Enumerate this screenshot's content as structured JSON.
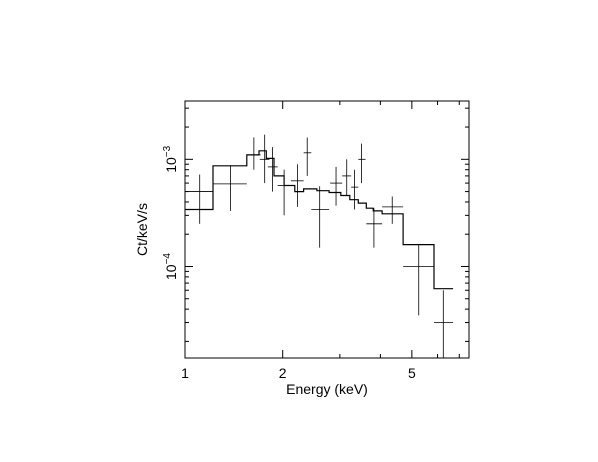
{
  "chart_data": {
    "type": "line",
    "xlabel": "Energy (keV)",
    "ylabel": "Ct/keV/s",
    "x_scale": "log",
    "y_scale": "log",
    "xlim": [
      1.0,
      7.5
    ],
    "ylim": [
      1.4e-05,
      0.0035
    ],
    "x_ticks": [
      {
        "value": 1,
        "label": "1"
      },
      {
        "value": 2,
        "label": "2"
      },
      {
        "value": 5,
        "label": "5"
      }
    ],
    "y_ticks": [
      {
        "value": 0.0001,
        "base": "10",
        "exp": "−4"
      },
      {
        "value": 0.001,
        "base": "10",
        "exp": "−3"
      }
    ],
    "grid": false,
    "series": [
      {
        "kind": "data_points_with_errors",
        "points": [
          {
            "x": 1.11,
            "xlo": 1.0,
            "xhi": 1.22,
            "y": 0.0005,
            "ylo": 0.00025,
            "yhi": 0.00072
          },
          {
            "x": 1.38,
            "xlo": 1.22,
            "xhi": 1.55,
            "y": 0.00059,
            "ylo": 0.00033,
            "yhi": 0.00088
          },
          {
            "x": 1.63,
            "xlo": 1.55,
            "xhi": 1.71,
            "y": 0.0011,
            "ylo": 0.0008,
            "yhi": 0.0016
          },
          {
            "x": 1.76,
            "xlo": 1.7,
            "xhi": 1.82,
            "y": 0.001,
            "ylo": 0.0006,
            "yhi": 0.0017
          },
          {
            "x": 1.86,
            "xlo": 1.8,
            "xhi": 1.93,
            "y": 0.00085,
            "ylo": 0.0005,
            "yhi": 0.0013
          },
          {
            "x": 2.02,
            "xlo": 1.93,
            "xhi": 2.12,
            "y": 0.00057,
            "ylo": 0.0003,
            "yhi": 0.0008
          },
          {
            "x": 2.22,
            "xlo": 2.12,
            "xhi": 2.32,
            "y": 0.00063,
            "ylo": 0.00036,
            "yhi": 0.0009
          },
          {
            "x": 2.38,
            "xlo": 2.32,
            "xhi": 2.45,
            "y": 0.00115,
            "ylo": 0.0007,
            "yhi": 0.0016
          },
          {
            "x": 2.6,
            "xlo": 2.45,
            "xhi": 2.78,
            "y": 0.00034,
            "ylo": 0.00015,
            "yhi": 0.00056
          },
          {
            "x": 2.92,
            "xlo": 2.8,
            "xhi": 3.05,
            "y": 0.0006,
            "ylo": 0.00037,
            "yhi": 0.00085
          },
          {
            "x": 3.15,
            "xlo": 3.05,
            "xhi": 3.25,
            "y": 0.0007,
            "ylo": 0.00046,
            "yhi": 0.001
          },
          {
            "x": 3.33,
            "xlo": 3.25,
            "xhi": 3.42,
            "y": 0.00055,
            "ylo": 0.00034,
            "yhi": 0.0008
          },
          {
            "x": 3.5,
            "xlo": 3.42,
            "xhi": 3.6,
            "y": 0.001,
            "ylo": 0.0006,
            "yhi": 0.0014
          },
          {
            "x": 3.82,
            "xlo": 3.62,
            "xhi": 4.05,
            "y": 0.00025,
            "ylo": 0.00015,
            "yhi": 0.00035
          },
          {
            "x": 4.35,
            "xlo": 4.05,
            "xhi": 4.7,
            "y": 0.00036,
            "ylo": 0.00025,
            "yhi": 0.00045
          },
          {
            "x": 5.25,
            "xlo": 4.7,
            "xhi": 5.85,
            "y": 0.0001,
            "ylo": 3.5e-05,
            "yhi": 0.00016
          },
          {
            "x": 6.25,
            "xlo": 5.85,
            "xhi": 6.7,
            "y": 3e-05,
            "ylo": 1e-05,
            "yhi": 6e-05
          }
        ]
      },
      {
        "kind": "model_step",
        "edges": [
          1.0,
          1.22,
          1.55,
          1.69,
          1.78,
          1.88,
          2.02,
          2.18,
          2.32,
          2.55,
          2.78,
          3.02,
          3.22,
          3.42,
          3.62,
          3.8,
          4.05,
          4.7,
          5.85,
          6.7
        ],
        "values": [
          0.00034,
          0.00087,
          0.0011,
          0.0012,
          0.00102,
          0.0007,
          0.00057,
          0.0005,
          0.00053,
          0.00051,
          0.00049,
          0.00046,
          0.00042,
          0.00039,
          0.00035,
          0.00033,
          0.00031,
          0.00016,
          6.2e-05
        ]
      }
    ]
  }
}
